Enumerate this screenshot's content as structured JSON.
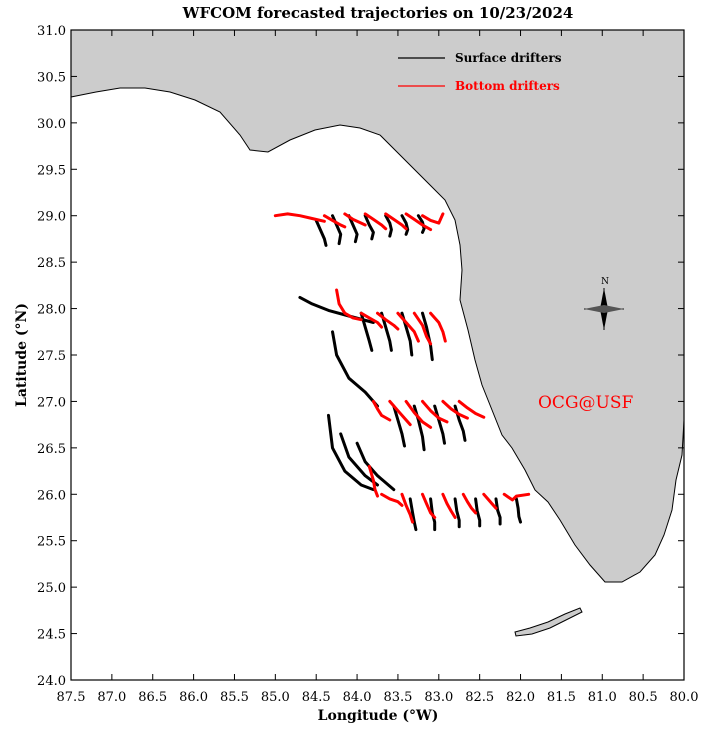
{
  "title": "WFCOM forecasted trajectories on 10/23/2024",
  "xlabel": "Longitude (°W)",
  "ylabel": "Latitude (°N)",
  "x_ticks": [
    "87.5",
    "87.0",
    "86.5",
    "86.0",
    "85.5",
    "85.0",
    "84.5",
    "84.0",
    "83.5",
    "83.0",
    "82.5",
    "82.0",
    "81.5",
    "81.0",
    "80.5",
    "80.0"
  ],
  "y_ticks": [
    "31.0",
    "30.5",
    "30.0",
    "29.5",
    "29.0",
    "28.5",
    "28.0",
    "27.5",
    "27.0",
    "26.5",
    "26.0",
    "25.5",
    "25.0",
    "24.5",
    "24.0"
  ],
  "legend": {
    "surface": "Surface drifters",
    "bottom": "Bottom drifters",
    "surface_color": "#000000",
    "bottom_color": "#ff0000"
  },
  "watermark": "OCG@USF",
  "watermark_color": "#ff0000",
  "land_color": "#cccccc",
  "compass_label": "N",
  "chart_data": {
    "type": "map",
    "xlim": [
      87.5,
      80.0
    ],
    "ylim": [
      24.0,
      31.0
    ],
    "x_direction": "west-positive, decreasing to the right",
    "surface_drifters": [
      {
        "lon": [
          84.5,
          84.45,
          84.4,
          84.38
        ],
        "lat": [
          28.95,
          28.85,
          28.75,
          28.68
        ]
      },
      {
        "lon": [
          84.3,
          84.25,
          84.2,
          84.22
        ],
        "lat": [
          29.0,
          28.9,
          28.8,
          28.7
        ]
      },
      {
        "lon": [
          84.1,
          84.05,
          84.0,
          84.02
        ],
        "lat": [
          29.0,
          28.9,
          28.8,
          28.72
        ]
      },
      {
        "lon": [
          83.9,
          83.85,
          83.8,
          83.82
        ],
        "lat": [
          29.0,
          28.9,
          28.82,
          28.75
        ]
      },
      {
        "lon": [
          83.65,
          83.6,
          83.58,
          83.6
        ],
        "lat": [
          29.0,
          28.92,
          28.85,
          28.78
        ]
      },
      {
        "lon": [
          83.45,
          83.4,
          83.38,
          83.4
        ],
        "lat": [
          29.0,
          28.92,
          28.85,
          28.8
        ]
      },
      {
        "lon": [
          83.25,
          83.2,
          83.18,
          83.2
        ],
        "lat": [
          29.0,
          28.93,
          28.86,
          28.82
        ]
      },
      {
        "lon": [
          84.7,
          84.55,
          84.35,
          84.1,
          83.8
        ],
        "lat": [
          28.12,
          28.05,
          27.98,
          27.92,
          27.85
        ]
      },
      {
        "lon": [
          83.95,
          83.9,
          83.85,
          83.82
        ],
        "lat": [
          27.95,
          27.8,
          27.65,
          27.55
        ]
      },
      {
        "lon": [
          83.7,
          83.65,
          83.6,
          83.58
        ],
        "lat": [
          27.95,
          27.8,
          27.65,
          27.55
        ]
      },
      {
        "lon": [
          83.45,
          83.4,
          83.35,
          83.33
        ],
        "lat": [
          27.95,
          27.8,
          27.65,
          27.5
        ]
      },
      {
        "lon": [
          83.2,
          83.15,
          83.1,
          83.08
        ],
        "lat": [
          27.95,
          27.8,
          27.6,
          27.45
        ]
      },
      {
        "lon": [
          84.3,
          84.25,
          84.1,
          83.9,
          83.75
        ],
        "lat": [
          27.75,
          27.5,
          27.25,
          27.1,
          26.95
        ]
      },
      {
        "lon": [
          83.55,
          83.5,
          83.45,
          83.42
        ],
        "lat": [
          26.95,
          26.8,
          26.65,
          26.52
        ]
      },
      {
        "lon": [
          83.3,
          83.25,
          83.2,
          83.18
        ],
        "lat": [
          26.95,
          26.8,
          26.62,
          26.48
        ]
      },
      {
        "lon": [
          83.05,
          83.0,
          82.95,
          82.93
        ],
        "lat": [
          26.95,
          26.8,
          26.65,
          26.55
        ]
      },
      {
        "lon": [
          82.8,
          82.75,
          82.7,
          82.68
        ],
        "lat": [
          26.95,
          26.8,
          26.68,
          26.58
        ]
      },
      {
        "lon": [
          84.35,
          84.3,
          84.15,
          83.95,
          83.8
        ],
        "lat": [
          26.85,
          26.5,
          26.25,
          26.1,
          26.05
        ]
      },
      {
        "lon": [
          84.2,
          84.1,
          83.9,
          83.75
        ],
        "lat": [
          26.65,
          26.4,
          26.2,
          26.1
        ]
      },
      {
        "lon": [
          84.0,
          83.9,
          83.75,
          83.55
        ],
        "lat": [
          26.55,
          26.35,
          26.2,
          26.05
        ]
      },
      {
        "lon": [
          83.35,
          83.32,
          83.3,
          83.28
        ],
        "lat": [
          25.95,
          25.8,
          25.7,
          25.62
        ]
      },
      {
        "lon": [
          83.1,
          83.08,
          83.05,
          83.05
        ],
        "lat": [
          25.95,
          25.8,
          25.7,
          25.62
        ]
      },
      {
        "lon": [
          82.8,
          82.78,
          82.75,
          82.75
        ],
        "lat": [
          25.95,
          25.82,
          25.72,
          25.65
        ]
      },
      {
        "lon": [
          82.55,
          82.53,
          82.5,
          82.5
        ],
        "lat": [
          25.95,
          25.82,
          25.72,
          25.66
        ]
      },
      {
        "lon": [
          82.3,
          82.28,
          82.25,
          82.25
        ],
        "lat": [
          25.95,
          25.83,
          25.75,
          25.68
        ]
      },
      {
        "lon": [
          82.05,
          82.03,
          82.02,
          82.0
        ],
        "lat": [
          25.95,
          25.85,
          25.76,
          25.7
        ]
      }
    ],
    "bottom_drifters": [
      {
        "lon": [
          85.0,
          84.85,
          84.7,
          84.55,
          84.4
        ],
        "lat": [
          29.0,
          29.02,
          29.0,
          28.97,
          28.94
        ]
      },
      {
        "lon": [
          84.4,
          84.3,
          84.2,
          84.15
        ],
        "lat": [
          29.0,
          28.95,
          28.9,
          28.88
        ]
      },
      {
        "lon": [
          84.15,
          84.05,
          83.95,
          83.9
        ],
        "lat": [
          29.02,
          28.96,
          28.92,
          28.9
        ]
      },
      {
        "lon": [
          83.9,
          83.8,
          83.7,
          83.65
        ],
        "lat": [
          29.02,
          28.96,
          28.9,
          28.86
        ]
      },
      {
        "lon": [
          83.65,
          83.55,
          83.45,
          83.4
        ],
        "lat": [
          29.02,
          28.96,
          28.9,
          28.86
        ]
      },
      {
        "lon": [
          83.4,
          83.3,
          83.2,
          83.1
        ],
        "lat": [
          29.02,
          28.96,
          28.9,
          28.85
        ]
      },
      {
        "lon": [
          83.2,
          83.1,
          83.0,
          82.95
        ],
        "lat": [
          29.0,
          28.95,
          28.92,
          29.02
        ]
      },
      {
        "lon": [
          84.25,
          84.22,
          84.15,
          84.05,
          83.95
        ],
        "lat": [
          28.2,
          28.05,
          27.95,
          27.9,
          27.88
        ]
      },
      {
        "lon": [
          83.95,
          83.85,
          83.75,
          83.7
        ],
        "lat": [
          27.95,
          27.9,
          27.85,
          27.8
        ]
      },
      {
        "lon": [
          83.75,
          83.65,
          83.55,
          83.5
        ],
        "lat": [
          27.95,
          27.88,
          27.82,
          27.78
        ]
      },
      {
        "lon": [
          83.5,
          83.4,
          83.3,
          83.25
        ],
        "lat": [
          27.95,
          27.85,
          27.75,
          27.65
        ]
      },
      {
        "lon": [
          83.3,
          83.2,
          83.15,
          83.1
        ],
        "lat": [
          27.95,
          27.82,
          27.7,
          27.62
        ]
      },
      {
        "lon": [
          83.1,
          83.0,
          82.95,
          82.92
        ],
        "lat": [
          27.95,
          27.85,
          27.75,
          27.65
        ]
      },
      {
        "lon": [
          83.8,
          83.75,
          83.7,
          83.6
        ],
        "lat": [
          27.0,
          26.92,
          26.85,
          26.8
        ]
      },
      {
        "lon": [
          83.6,
          83.5,
          83.4,
          83.35
        ],
        "lat": [
          27.0,
          26.9,
          26.8,
          26.75
        ]
      },
      {
        "lon": [
          83.4,
          83.3,
          83.2,
          83.1
        ],
        "lat": [
          27.0,
          26.88,
          26.78,
          26.72
        ]
      },
      {
        "lon": [
          83.2,
          83.1,
          83.0,
          82.9
        ],
        "lat": [
          27.0,
          26.9,
          26.82,
          26.78
        ]
      },
      {
        "lon": [
          82.95,
          82.85,
          82.75,
          82.65
        ],
        "lat": [
          27.0,
          26.92,
          26.86,
          26.82
        ]
      },
      {
        "lon": [
          82.75,
          82.65,
          82.55,
          82.45
        ],
        "lat": [
          27.0,
          26.93,
          26.87,
          26.83
        ]
      },
      {
        "lon": [
          83.85,
          83.8,
          83.78,
          83.75
        ],
        "lat": [
          26.3,
          26.15,
          26.05,
          25.98
        ]
      },
      {
        "lon": [
          83.7,
          83.6,
          83.5,
          83.45
        ],
        "lat": [
          26.0,
          25.95,
          25.92,
          25.88
        ]
      },
      {
        "lon": [
          83.45,
          83.4,
          83.35,
          83.32
        ],
        "lat": [
          26.0,
          25.88,
          25.78,
          25.7
        ]
      },
      {
        "lon": [
          83.2,
          83.15,
          83.1,
          83.05
        ],
        "lat": [
          26.0,
          25.9,
          25.8,
          25.75
        ]
      },
      {
        "lon": [
          82.95,
          82.9,
          82.85,
          82.8
        ],
        "lat": [
          26.0,
          25.9,
          25.82,
          25.75
        ]
      },
      {
        "lon": [
          82.7,
          82.65,
          82.6,
          82.55
        ],
        "lat": [
          26.0,
          25.92,
          25.85,
          25.8
        ]
      },
      {
        "lon": [
          82.45,
          82.4,
          82.35,
          82.3
        ],
        "lat": [
          26.0,
          25.95,
          25.9,
          25.85
        ]
      },
      {
        "lon": [
          82.2,
          82.15,
          82.1,
          82.05,
          81.9
        ],
        "lat": [
          26.0,
          25.97,
          25.94,
          25.98,
          26.0
        ]
      }
    ]
  }
}
